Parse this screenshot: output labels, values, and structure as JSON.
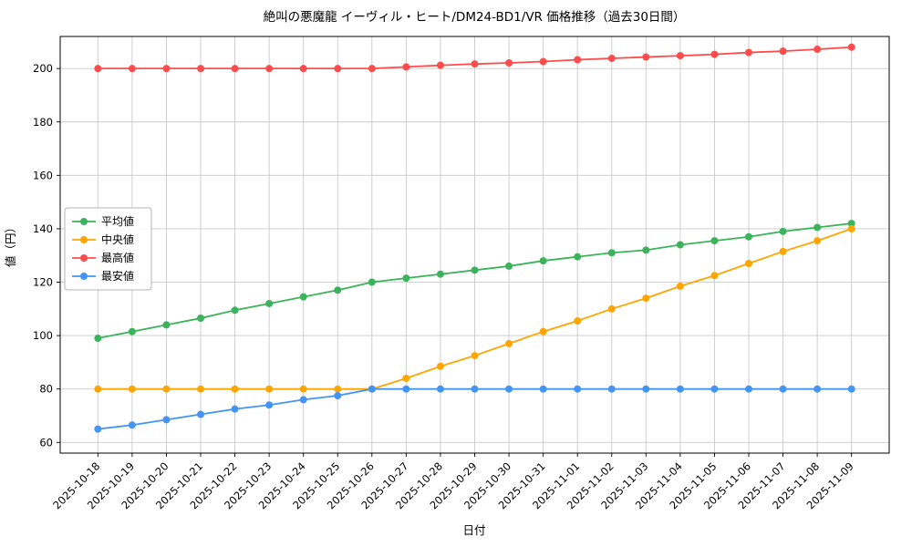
{
  "chart_data": {
    "type": "line",
    "title": "絶叫の悪魔龍 イーヴィル・ヒート/DM24-BD1/VR 価格推移（過去30日間）",
    "xlabel": "日付",
    "ylabel": "値（円）",
    "x": [
      "2025-10-18",
      "2025-10-19",
      "2025-10-20",
      "2025-10-21",
      "2025-10-22",
      "2025-10-23",
      "2025-10-24",
      "2025-10-25",
      "2025-10-26",
      "2025-10-27",
      "2025-10-28",
      "2025-10-29",
      "2025-10-30",
      "2025-10-31",
      "2025-11-01",
      "2025-11-02",
      "2025-11-03",
      "2025-11-04",
      "2025-11-05",
      "2025-11-06",
      "2025-11-07",
      "2025-11-08",
      "2025-11-09"
    ],
    "yticks": [
      60,
      80,
      100,
      120,
      140,
      160,
      180,
      200
    ],
    "ylim": [
      56,
      212
    ],
    "grid": true,
    "grid_color": "#c9c9c9",
    "axis_color": "#000000",
    "background_color": "#ffffff",
    "legend_position": "left-middle",
    "series": [
      {
        "name": "平均値",
        "color": "#3bb35a",
        "values": [
          99,
          101.5,
          104,
          106.5,
          109.5,
          112,
          114.5,
          117,
          120,
          121.5,
          123,
          124.5,
          126,
          128,
          129.5,
          131,
          132,
          134,
          135.5,
          137,
          139,
          140.5,
          142
        ]
      },
      {
        "name": "中央値",
        "color": "#ffa500",
        "values": [
          80,
          80,
          80,
          80,
          80,
          80,
          80,
          80,
          80,
          84,
          88.5,
          92.5,
          97,
          101.5,
          105.5,
          110,
          114,
          118.5,
          122.5,
          127,
          131.5,
          135.5,
          140
        ]
      },
      {
        "name": "最高値",
        "color": "#ff4b4b",
        "values": [
          200,
          200,
          200,
          200,
          200,
          200,
          200,
          200,
          200,
          200.6,
          201.2,
          201.7,
          202.1,
          202.6,
          203.3,
          203.8,
          204.3,
          204.8,
          205.3,
          206,
          206.5,
          207.2,
          208
        ]
      },
      {
        "name": "最安値",
        "color": "#4295f5",
        "values": [
          65,
          66.5,
          68.5,
          70.5,
          72.5,
          74,
          76,
          77.5,
          80,
          80,
          80,
          80,
          80,
          80,
          80,
          80,
          80,
          80,
          80,
          80,
          80,
          80,
          80
        ]
      }
    ]
  }
}
